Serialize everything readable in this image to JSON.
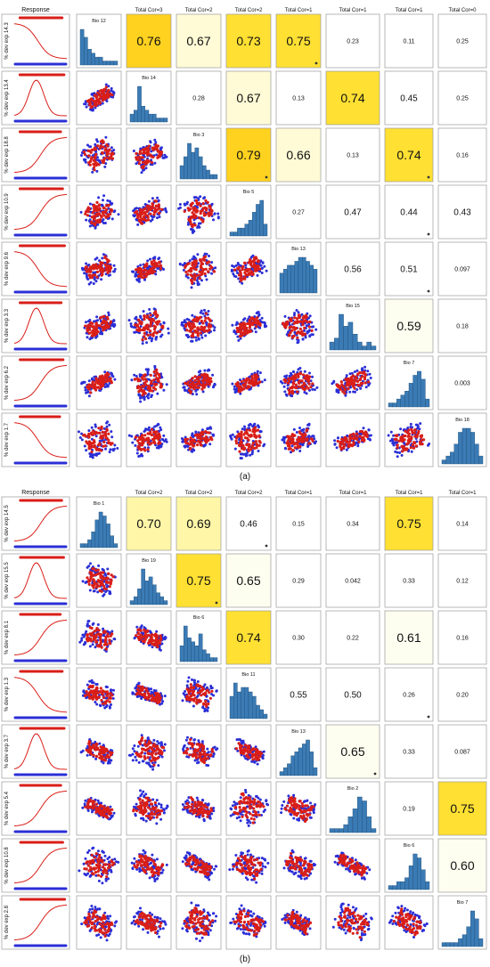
{
  "palette": {
    "red": "#d91e18",
    "blue": "#2b2fd6",
    "hist": "#3b7bb5",
    "strong": "#ffe033",
    "mid": "#fff6a8",
    "weak": "#fffbd6",
    "faint": "#fdfdf0",
    "border": "#9a9a9a"
  },
  "chart_data": [
    {
      "type": "scatter_matrix",
      "panel_label": "(a)",
      "response_header": "Response",
      "headers": [
        "Total Cor=3",
        "Total Cor=2",
        "Total Cor=2",
        "Total Cor=1",
        "Total Cor=1",
        "Total Cor=1",
        "Total Cor=0"
      ],
      "response_labels": [
        "% dev exp 14.3",
        "% dev exp 13.4",
        "% dev exp 18.8",
        "% dev exp 10.9",
        "% dev exp 9.6",
        "% dev exp 3.3",
        "% dev exp 6.2",
        "% dev exp 1.7"
      ],
      "response_curves": [
        "decline",
        "hump",
        "rise",
        "rise",
        "decline",
        "hump",
        "rise",
        "decline"
      ],
      "diag_labels": [
        "Bio 12",
        "Bio 14",
        "Bio 3",
        "Bio 5",
        "Bio 13",
        "Bio 15",
        "Bio 7",
        "Bio 18"
      ],
      "diag_hist": [
        [
          9,
          7,
          4,
          3,
          2,
          2,
          1,
          1,
          1,
          1
        ],
        [
          2,
          3,
          9,
          4,
          3,
          2,
          2,
          1,
          1,
          1
        ],
        [
          3,
          5,
          8,
          6,
          7,
          5,
          3,
          2,
          1,
          1
        ],
        [
          1,
          1,
          2,
          2,
          3,
          4,
          6,
          8,
          9,
          3
        ],
        [
          5,
          6,
          7,
          7,
          8,
          9,
          9,
          8,
          7,
          6
        ],
        [
          2,
          3,
          9,
          6,
          7,
          4,
          2,
          1,
          2,
          1
        ],
        [
          1,
          1,
          2,
          3,
          4,
          6,
          8,
          9,
          7,
          2
        ],
        [
          1,
          2,
          3,
          5,
          8,
          9,
          9,
          8,
          5,
          2
        ]
      ],
      "correlations": [
        {
          "r": 0,
          "c": 1,
          "value": "0.76",
          "marker": false
        },
        {
          "r": 0,
          "c": 2,
          "value": "0.67",
          "marker": false
        },
        {
          "r": 0,
          "c": 3,
          "value": "0.73",
          "marker": false
        },
        {
          "r": 0,
          "c": 4,
          "value": "0.75",
          "marker": true
        },
        {
          "r": 0,
          "c": 5,
          "value": "0.23",
          "marker": false
        },
        {
          "r": 0,
          "c": 6,
          "value": "0.11",
          "marker": false
        },
        {
          "r": 0,
          "c": 7,
          "value": "0.25",
          "marker": false
        },
        {
          "r": 1,
          "c": 2,
          "value": "0.28",
          "marker": false
        },
        {
          "r": 1,
          "c": 3,
          "value": "0.67",
          "marker": false
        },
        {
          "r": 1,
          "c": 4,
          "value": "0.13",
          "marker": false
        },
        {
          "r": 1,
          "c": 5,
          "value": "0.74",
          "marker": false
        },
        {
          "r": 1,
          "c": 6,
          "value": "0.45",
          "marker": false
        },
        {
          "r": 1,
          "c": 7,
          "value": "0.25",
          "marker": false
        },
        {
          "r": 2,
          "c": 3,
          "value": "0.79",
          "marker": true
        },
        {
          "r": 2,
          "c": 4,
          "value": "0.66",
          "marker": false
        },
        {
          "r": 2,
          "c": 5,
          "value": "0.13",
          "marker": false
        },
        {
          "r": 2,
          "c": 6,
          "value": "0.74",
          "marker": true
        },
        {
          "r": 2,
          "c": 7,
          "value": "0.16",
          "marker": false
        },
        {
          "r": 3,
          "c": 4,
          "value": "0.27",
          "marker": false
        },
        {
          "r": 3,
          "c": 5,
          "value": "0.47",
          "marker": false
        },
        {
          "r": 3,
          "c": 6,
          "value": "0.44",
          "marker": true
        },
        {
          "r": 3,
          "c": 7,
          "value": "0.43",
          "marker": false
        },
        {
          "r": 4,
          "c": 5,
          "value": "0.56",
          "marker": false
        },
        {
          "r": 4,
          "c": 6,
          "value": "0.51",
          "marker": true
        },
        {
          "r": 4,
          "c": 7,
          "value": "0.097",
          "marker": false
        },
        {
          "r": 5,
          "c": 6,
          "value": "0.59",
          "marker": false
        },
        {
          "r": 5,
          "c": 7,
          "value": "0.18",
          "marker": false
        },
        {
          "r": 6,
          "c": 7,
          "value": "0.003",
          "marker": false
        }
      ]
    },
    {
      "type": "scatter_matrix",
      "panel_label": "(b)",
      "response_header": "Response",
      "headers": [
        "Total Cor=2",
        "Total Cor=2",
        "Total Cor=2",
        "Total Cor=1",
        "Total Cor=1",
        "Total Cor=1",
        "Total Cor=1"
      ],
      "response_labels": [
        "% dev exp 14.5",
        "% dev exp 15.5",
        "% dev exp 8.1",
        "% dev exp 1.3",
        "% dev exp 3.7",
        "% dev exp 5.4",
        "% dev exp 10.8",
        "% dev exp 2.8"
      ],
      "response_curves": [
        "rise",
        "hump",
        "rise",
        "decline",
        "hump",
        "rise",
        "rise",
        "rise"
      ],
      "diag_labels": [
        "Bio 1",
        "Bio 19",
        "Bio 6",
        "Bio 11",
        "Bio 13",
        "Bio 2",
        "Bio 6",
        "Bio 7"
      ],
      "diag_hist": [
        [
          1,
          1,
          2,
          4,
          7,
          9,
          8,
          6,
          3,
          1
        ],
        [
          1,
          2,
          4,
          9,
          6,
          7,
          5,
          3,
          2,
          1
        ],
        [
          4,
          9,
          6,
          5,
          4,
          7,
          3,
          2,
          1,
          1
        ],
        [
          5,
          8,
          6,
          7,
          7,
          6,
          5,
          3,
          2,
          1
        ],
        [
          1,
          2,
          3,
          5,
          6,
          7,
          8,
          9,
          6,
          2
        ],
        [
          1,
          1,
          1,
          2,
          4,
          6,
          9,
          8,
          4,
          1
        ],
        [
          1,
          1,
          2,
          2,
          3,
          6,
          9,
          8,
          5,
          2
        ],
        [
          1,
          1,
          1,
          1,
          2,
          3,
          5,
          9,
          7,
          2
        ]
      ],
      "correlations": [
        {
          "r": 0,
          "c": 1,
          "value": "0.70",
          "marker": false
        },
        {
          "r": 0,
          "c": 2,
          "value": "0.69",
          "marker": false
        },
        {
          "r": 0,
          "c": 3,
          "value": "0.46",
          "marker": true
        },
        {
          "r": 0,
          "c": 4,
          "value": "0.15",
          "marker": false
        },
        {
          "r": 0,
          "c": 5,
          "value": "0.34",
          "marker": false
        },
        {
          "r": 0,
          "c": 6,
          "value": "0.75",
          "marker": false
        },
        {
          "r": 0,
          "c": 7,
          "value": "0.14",
          "marker": false
        },
        {
          "r": 1,
          "c": 2,
          "value": "0.75",
          "marker": true
        },
        {
          "r": 1,
          "c": 3,
          "value": "0.65",
          "marker": false
        },
        {
          "r": 1,
          "c": 4,
          "value": "0.29",
          "marker": false
        },
        {
          "r": 1,
          "c": 5,
          "value": "0.042",
          "marker": false
        },
        {
          "r": 1,
          "c": 6,
          "value": "0.33",
          "marker": false
        },
        {
          "r": 1,
          "c": 7,
          "value": "0.12",
          "marker": false
        },
        {
          "r": 2,
          "c": 3,
          "value": "0.74",
          "marker": false
        },
        {
          "r": 2,
          "c": 4,
          "value": "0.30",
          "marker": false
        },
        {
          "r": 2,
          "c": 5,
          "value": "0.22",
          "marker": false
        },
        {
          "r": 2,
          "c": 6,
          "value": "0.61",
          "marker": false
        },
        {
          "r": 2,
          "c": 7,
          "value": "0.16",
          "marker": false
        },
        {
          "r": 3,
          "c": 4,
          "value": "0.55",
          "marker": false
        },
        {
          "r": 3,
          "c": 5,
          "value": "0.50",
          "marker": false
        },
        {
          "r": 3,
          "c": 6,
          "value": "0.26",
          "marker": true
        },
        {
          "r": 3,
          "c": 7,
          "value": "0.20",
          "marker": false
        },
        {
          "r": 4,
          "c": 5,
          "value": "0.65",
          "marker": true
        },
        {
          "r": 4,
          "c": 6,
          "value": "0.33",
          "marker": false
        },
        {
          "r": 4,
          "c": 7,
          "value": "0.087",
          "marker": false
        },
        {
          "r": 5,
          "c": 6,
          "value": "0.19",
          "marker": false
        },
        {
          "r": 5,
          "c": 7,
          "value": "0.75",
          "marker": false
        },
        {
          "r": 6,
          "c": 7,
          "value": "0.60",
          "marker": false
        }
      ]
    }
  ]
}
